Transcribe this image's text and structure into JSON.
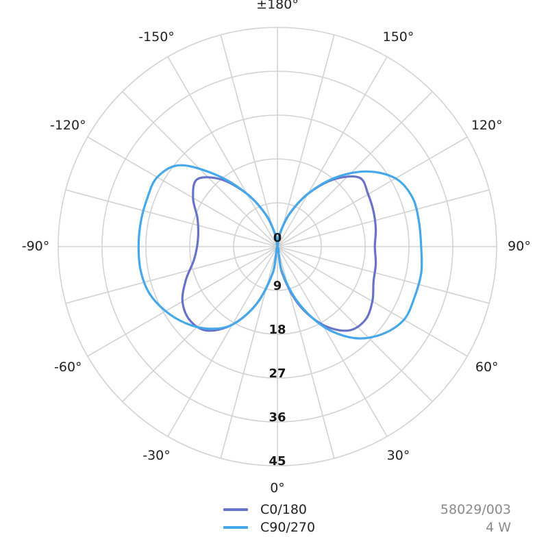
{
  "chart_data": {
    "type": "polar-line",
    "angle_labels": [
      {
        "angle": 0,
        "text": "0°"
      },
      {
        "angle": 30,
        "text": "30°"
      },
      {
        "angle": 60,
        "text": "60°"
      },
      {
        "angle": 90,
        "text": "90°"
      },
      {
        "angle": 120,
        "text": "120°"
      },
      {
        "angle": 150,
        "text": "150°"
      },
      {
        "angle": 180,
        "text": "±180°"
      },
      {
        "angle": -150,
        "text": "-150°"
      },
      {
        "angle": -120,
        "text": "-120°"
      },
      {
        "angle": -90,
        "text": "-90°"
      },
      {
        "angle": -60,
        "text": "-60°"
      },
      {
        "angle": -30,
        "text": "-30°"
      }
    ],
    "radial_ticks": [
      0,
      9,
      18,
      27,
      36,
      45
    ],
    "radial_max": 45,
    "angular_grid_step": 15,
    "grid": true,
    "legend_position": "bottom",
    "series": [
      {
        "name": "C0/180",
        "color": "#6673c9",
        "points": [
          {
            "a": 0,
            "r": 0
          },
          {
            "a": 10,
            "r": 5.5
          },
          {
            "a": 20,
            "r": 12.5
          },
          {
            "a": 30,
            "r": 18.5
          },
          {
            "a": 40,
            "r": 22.5
          },
          {
            "a": 50,
            "r": 23.5
          },
          {
            "a": 60,
            "r": 22.5
          },
          {
            "a": 70,
            "r": 21.0
          },
          {
            "a": 80,
            "r": 20.5
          },
          {
            "a": 90,
            "r": 20.0
          },
          {
            "a": 100,
            "r": 20.5
          },
          {
            "a": 110,
            "r": 21.0
          },
          {
            "a": 120,
            "r": 21.5
          },
          {
            "a": 130,
            "r": 22.0
          },
          {
            "a": 140,
            "r": 18.0
          },
          {
            "a": 150,
            "r": 12.5
          },
          {
            "a": 160,
            "r": 7.0
          },
          {
            "a": 170,
            "r": 2.5
          },
          {
            "a": 180,
            "r": 0
          },
          {
            "a": -170,
            "r": 2.5
          },
          {
            "a": -160,
            "r": 7.0
          },
          {
            "a": -150,
            "r": 12.5
          },
          {
            "a": -140,
            "r": 18.0
          },
          {
            "a": -130,
            "r": 21.5
          },
          {
            "a": -120,
            "r": 20.0
          },
          {
            "a": -110,
            "r": 17.5
          },
          {
            "a": -100,
            "r": 16.5
          },
          {
            "a": -90,
            "r": 16.5
          },
          {
            "a": -80,
            "r": 17.5
          },
          {
            "a": -70,
            "r": 20.0
          },
          {
            "a": -60,
            "r": 22.5
          },
          {
            "a": -50,
            "r": 23.5
          },
          {
            "a": -40,
            "r": 22.5
          },
          {
            "a": -30,
            "r": 18.5
          },
          {
            "a": -20,
            "r": 12.5
          },
          {
            "a": -10,
            "r": 5.5
          },
          {
            "a": 0,
            "r": 0
          }
        ]
      },
      {
        "name": "C90/270",
        "color": "#45a8ea",
        "points": [
          {
            "a": 0,
            "r": 0
          },
          {
            "a": 10,
            "r": 5.0
          },
          {
            "a": 20,
            "r": 12.0
          },
          {
            "a": 30,
            "r": 19.0
          },
          {
            "a": 40,
            "r": 24.5
          },
          {
            "a": 50,
            "r": 28.0
          },
          {
            "a": 60,
            "r": 30.0
          },
          {
            "a": 70,
            "r": 30.0
          },
          {
            "a": 80,
            "r": 30.0
          },
          {
            "a": 90,
            "r": 29.5
          },
          {
            "a": 100,
            "r": 29.5
          },
          {
            "a": 110,
            "r": 29.5
          },
          {
            "a": 120,
            "r": 28.0
          },
          {
            "a": 130,
            "r": 24.0
          },
          {
            "a": 140,
            "r": 18.5
          },
          {
            "a": 150,
            "r": 12.5
          },
          {
            "a": 160,
            "r": 7.0
          },
          {
            "a": 170,
            "r": 2.5
          },
          {
            "a": 180,
            "r": 0
          },
          {
            "a": -170,
            "r": 2.5
          },
          {
            "a": -160,
            "r": 7.0
          },
          {
            "a": -150,
            "r": 12.5
          },
          {
            "a": -140,
            "r": 19.0
          },
          {
            "a": -130,
            "r": 26.0
          },
          {
            "a": -120,
            "r": 28.5
          },
          {
            "a": -110,
            "r": 28.5
          },
          {
            "a": -100,
            "r": 28.5
          },
          {
            "a": -90,
            "r": 28.5
          },
          {
            "a": -80,
            "r": 28.5
          },
          {
            "a": -70,
            "r": 28.0
          },
          {
            "a": -60,
            "r": 26.5
          },
          {
            "a": -50,
            "r": 24.5
          },
          {
            "a": -40,
            "r": 22.0
          },
          {
            "a": -30,
            "r": 18.5
          },
          {
            "a": -20,
            "r": 12.5
          },
          {
            "a": -10,
            "r": 5.5
          },
          {
            "a": 0,
            "r": 0
          }
        ]
      }
    ]
  },
  "meta": {
    "product_code": "58029/003",
    "power": "4 W"
  }
}
